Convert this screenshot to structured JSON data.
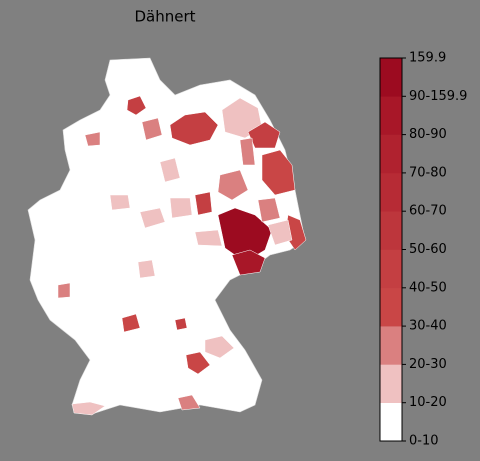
{
  "title": "Dähnert",
  "colorbar": {
    "labels": [
      "0-10",
      "10-20",
      "20-30",
      "30-40",
      "40-50",
      "50-60",
      "60-70",
      "70-80",
      "80-90",
      "90-159.9",
      "159.9"
    ],
    "colors": [
      "#ffffff",
      "#efc1c1",
      "#da8080",
      "#c94646",
      "#c43f42",
      "#bd363c",
      "#b72b35",
      "#b0222f",
      "#a81728",
      "#9c0b20"
    ]
  }
}
